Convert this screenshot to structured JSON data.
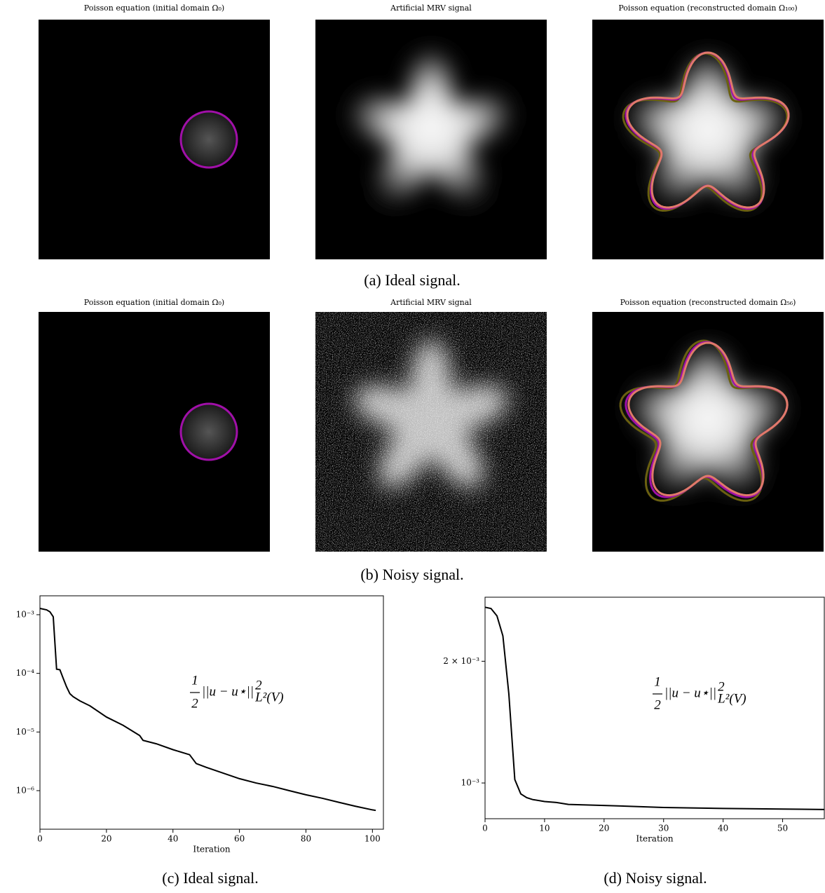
{
  "panels": [
    {
      "title": "Poisson equation (initial domain Ω₀)"
    },
    {
      "title": "Artificial MRV signal"
    },
    {
      "title": "Poisson equation (reconstructed domain Ω₁₀₀)"
    },
    {
      "title": "Poisson equation (initial domain Ω₀)"
    },
    {
      "title": "Artificial MRV signal"
    },
    {
      "title": "Poisson equation (reconstructed domain Ω₅₆)"
    }
  ],
  "captions": {
    "a": "(a) Ideal signal.",
    "b": "(b) Noisy signal."
  },
  "chart_data": [
    {
      "type": "line",
      "caption": "(c) Ideal signal.",
      "x_label": "Iteration",
      "log_y": true,
      "color": "#000000",
      "annotation": {
        "numerator": "1",
        "denominator": "2",
        "expression": "||u − u⋆||",
        "sup": "2",
        "sub": "L²(V)"
      },
      "x": [
        0,
        2,
        3,
        4,
        5,
        6,
        7,
        8,
        9,
        10,
        12,
        15,
        20,
        25,
        30,
        31,
        35,
        40,
        45,
        47,
        50,
        55,
        60,
        65,
        70,
        75,
        80,
        85,
        90,
        95,
        100,
        101
      ],
      "values": [
        0.00128,
        0.00121,
        0.00112,
        0.00092,
        0.000118,
        0.000115,
        8.2e-05,
        5.9e-05,
        4.5e-05,
        4e-05,
        3.4e-05,
        2.8e-05,
        1.8e-05,
        1.3e-05,
        8.7e-06,
        7.2e-06,
        6.3e-06,
        5e-06,
        4.1e-06,
        2.9e-06,
        2.5e-06,
        2e-06,
        1.6e-06,
        1.35e-06,
        1.18e-06,
        1e-06,
        8.5e-07,
        7.4e-07,
        6.3e-07,
        5.4e-07,
        4.7e-07,
        4.6e-07
      ],
      "xlim": [
        0,
        103.3
      ],
      "xticks": [
        0,
        20,
        40,
        60,
        80,
        100
      ],
      "ylim": [
        2.2e-07,
        0.0021
      ],
      "yticks": [
        {
          "value": 0.001,
          "label": "10⁻³"
        },
        {
          "value": 0.0001,
          "label": "10⁻⁴"
        },
        {
          "value": 1e-05,
          "label": "10⁻⁵"
        },
        {
          "value": 1e-06,
          "label": "10⁻⁶"
        }
      ]
    },
    {
      "type": "line",
      "caption": "(d) Noisy signal.",
      "x_label": "Iteration",
      "log_y": true,
      "color": "#000000",
      "annotation": {
        "numerator": "1",
        "denominator": "2",
        "expression": "||u − u⋆||",
        "sup": "2",
        "sub": "L²(V)"
      },
      "x": [
        0,
        1,
        2,
        3,
        4,
        5,
        6,
        7,
        8,
        10,
        12,
        14,
        20,
        30,
        40,
        50,
        57
      ],
      "values": [
        0.00272,
        0.0027,
        0.00259,
        0.00231,
        0.00166,
        0.00102,
        0.00094,
        0.00092,
        0.00091,
        0.0009,
        0.000895,
        0.000885,
        0.00088,
        0.00087,
        0.000865,
        0.000862,
        0.00086
      ],
      "xlim": [
        0,
        57
      ],
      "xticks": [
        0,
        10,
        20,
        30,
        40,
        50
      ],
      "ylim": [
        0.000816,
        0.00288
      ],
      "yticks": [
        {
          "value": 0.002,
          "label": "2 × 10⁻³"
        },
        {
          "value": 0.001,
          "label": "10⁻³"
        }
      ]
    }
  ]
}
